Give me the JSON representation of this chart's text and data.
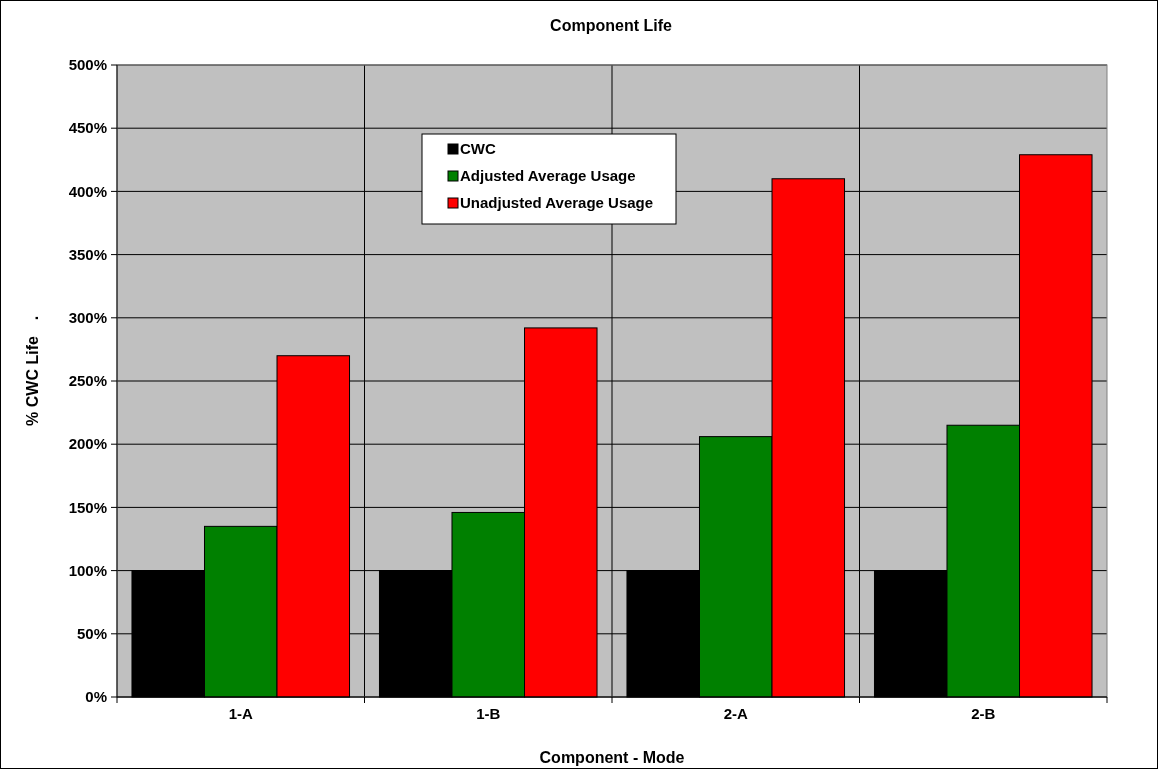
{
  "chart_data": {
    "type": "bar",
    "title": "Component Life",
    "xlabel": "Component - Mode",
    "ylabel": "% CWC Life",
    "annotations": [
      "."
    ],
    "categories": [
      "1-A",
      "1-B",
      "2-A",
      "2-B"
    ],
    "series": [
      {
        "name": "CWC",
        "color": "#000000",
        "values": [
          100,
          100,
          100,
          100
        ]
      },
      {
        "name": "Adjusted Average Usage",
        "color": "#008000",
        "values": [
          135,
          146,
          206,
          215
        ]
      },
      {
        "name": "Unadjusted Average Usage",
        "color": "#ff0000",
        "values": [
          270,
          292,
          410,
          429
        ]
      }
    ],
    "ylim": [
      0,
      500
    ],
    "yticks": [
      {
        "value": 0,
        "label": "0%"
      },
      {
        "value": 50,
        "label": "50%"
      },
      {
        "value": 100,
        "label": "100%"
      },
      {
        "value": 150,
        "label": "150%"
      },
      {
        "value": 200,
        "label": "200%"
      },
      {
        "value": 250,
        "label": "250%"
      },
      {
        "value": 300,
        "label": "300%"
      },
      {
        "value": 350,
        "label": "350%"
      },
      {
        "value": 400,
        "label": "400%"
      },
      {
        "value": 450,
        "label": "450%"
      },
      {
        "value": 500,
        "label": "500%"
      }
    ],
    "grid": true,
    "legend": "top"
  }
}
